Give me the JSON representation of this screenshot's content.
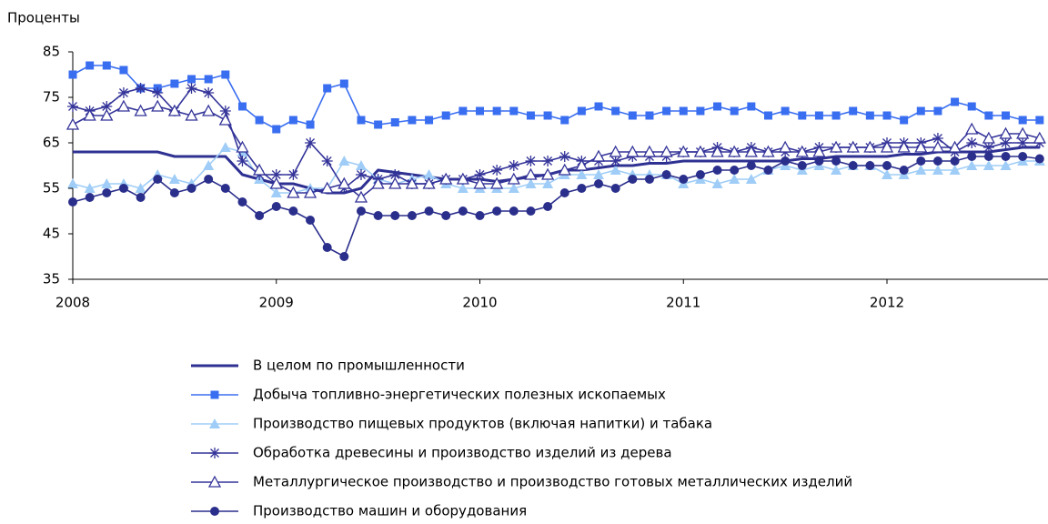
{
  "chart_data": {
    "type": "line",
    "ylabel": "Проценты",
    "categories": [
      "2008",
      null,
      null,
      null,
      null,
      null,
      null,
      null,
      null,
      null,
      null,
      null,
      "2009",
      null,
      null,
      null,
      null,
      null,
      null,
      null,
      null,
      null,
      null,
      null,
      "2010",
      null,
      null,
      null,
      null,
      null,
      null,
      null,
      null,
      null,
      null,
      null,
      "2011",
      null,
      null,
      null,
      null,
      null,
      null,
      null,
      null,
      null,
      null,
      null,
      "2012",
      null,
      null,
      null,
      null,
      null,
      null,
      null,
      null,
      null
    ],
    "ylim": [
      35,
      85
    ],
    "yticks": [
      35,
      45,
      55,
      65,
      75,
      85
    ],
    "series": [
      {
        "name": "В целом по промышленности",
        "color": "#2e3192",
        "marker": "none",
        "values": [
          63,
          63,
          63,
          63,
          63,
          63,
          62,
          62,
          62,
          62,
          58,
          57,
          56,
          56,
          55,
          54,
          54,
          55,
          59,
          58.5,
          58,
          57.5,
          57,
          57,
          57,
          56.5,
          57,
          57.5,
          58,
          59,
          59,
          59.5,
          60,
          60,
          60.5,
          60.5,
          61,
          61,
          61,
          61,
          61,
          61,
          61,
          61.5,
          61.5,
          62,
          62,
          62,
          62,
          62.5,
          62.5,
          63,
          63,
          63,
          63,
          63.5,
          64,
          64
        ]
      },
      {
        "name": "Добыча топливно-энергетических полезных ископаемых",
        "color": "#3a6ef0",
        "marker": "square",
        "values": [
          80,
          82,
          82,
          81,
          77,
          77,
          78,
          79,
          79,
          80,
          73,
          70,
          68,
          70,
          69,
          77,
          78,
          70,
          69,
          69.5,
          70,
          70,
          71,
          72,
          72,
          72,
          72,
          71,
          71,
          70,
          72,
          73,
          72,
          71,
          71,
          72,
          72,
          72,
          73,
          72,
          73,
          71,
          72,
          71,
          71,
          71,
          72,
          71,
          71,
          70,
          72,
          72,
          74,
          73,
          71,
          71,
          70,
          70
        ]
      },
      {
        "name": "Производство пищевых продуктов (включая напитки) и табака",
        "color": "#9fcdf7",
        "marker": "triangle",
        "values": [
          56,
          55,
          56,
          56,
          55,
          58,
          57,
          56,
          60,
          64,
          63,
          57,
          54,
          54,
          55,
          55,
          61,
          60,
          57,
          56,
          57,
          58,
          56,
          55,
          55,
          55,
          55,
          56,
          56,
          58,
          58,
          58,
          59,
          58,
          58,
          58,
          56,
          57,
          56,
          57,
          57,
          59,
          60,
          59,
          60,
          59,
          60,
          60,
          58,
          58,
          59,
          59,
          59,
          60,
          60,
          60,
          61,
          61
        ]
      },
      {
        "name": "Обработка древесины и производство изделий из дерева",
        "color": "#333399",
        "marker": "star",
        "values": [
          73,
          72,
          73,
          76,
          77,
          76,
          72,
          77,
          76,
          72,
          61,
          58,
          58,
          58,
          65,
          61,
          55,
          58,
          57,
          58,
          56,
          56,
          57,
          57,
          58,
          59,
          60,
          61,
          61,
          62,
          61,
          61,
          61,
          62,
          62,
          62,
          63,
          63,
          64,
          63,
          64,
          63,
          63,
          63,
          64,
          64,
          64,
          64,
          65,
          65,
          65,
          66,
          63,
          65,
          64,
          65,
          65,
          65
        ]
      },
      {
        "name": "Металлургическое производство и производство готовых металлических изделий",
        "color": "#333399",
        "marker": "open-triangle",
        "values": [
          69,
          71,
          71,
          73,
          72,
          73,
          72,
          71,
          72,
          70,
          64,
          59,
          56,
          54,
          54,
          55,
          56,
          53,
          56,
          56,
          56,
          56,
          57,
          57,
          56,
          56,
          57,
          58,
          58,
          59,
          60,
          62,
          63,
          63,
          63,
          63,
          63,
          63,
          63,
          63,
          63,
          63,
          64,
          63,
          63,
          64,
          64,
          64,
          64,
          64,
          64,
          64,
          64,
          68,
          66,
          67,
          67,
          66
        ]
      },
      {
        "name": "Производство машин и оборудования",
        "color": "#2b2f8c",
        "marker": "circle",
        "values": [
          52,
          53,
          54,
          55,
          53,
          57,
          54,
          55,
          57,
          55,
          52,
          49,
          51,
          50,
          48,
          42,
          40,
          50,
          49,
          49,
          49,
          50,
          49,
          50,
          49,
          50,
          50,
          50,
          51,
          54,
          55,
          56,
          55,
          57,
          57,
          58,
          57,
          58,
          59,
          59,
          60,
          59,
          61,
          60,
          61,
          61,
          60,
          60,
          60,
          59,
          61,
          61,
          61,
          62,
          62,
          62,
          62,
          61.5
        ]
      }
    ]
  }
}
